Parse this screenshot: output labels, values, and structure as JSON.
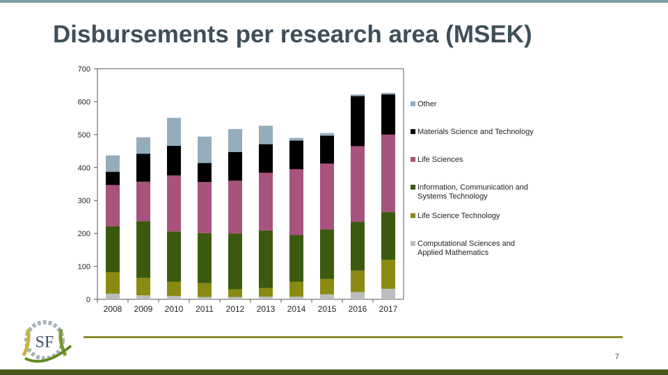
{
  "slide": {
    "title": "Disbursements per research area (MSEK)",
    "page_number": "7",
    "logo_text": "SF"
  },
  "colors": {
    "Other": "#94adbd",
    "Materials Science and Technology": "#000000",
    "Life Sciences": "#a8527e",
    "Information, Communication and Systems Technology": "#3c5a0f",
    "Life Science Technology": "#8a8a12",
    "Computational Sciences and Applied Mathematics": "#bdbdbd"
  },
  "chart_data": {
    "type": "bar",
    "stacked": true,
    "title": "Disbursements per research area (MSEK)",
    "xlabel": "",
    "ylabel": "",
    "ylim": [
      0,
      700
    ],
    "yticks": [
      "0",
      "100",
      "200",
      "300",
      "400",
      "500",
      "600",
      "700"
    ],
    "categories": [
      "2008",
      "2009",
      "2010",
      "2011",
      "2012",
      "2013",
      "2014",
      "2015",
      "2016",
      "2017"
    ],
    "series": [
      {
        "name": "Computational Sciences and Applied Mathematics",
        "values": [
          17,
          12,
          10,
          7,
          7,
          8,
          8,
          15,
          22,
          32
        ]
      },
      {
        "name": "Life Science Technology",
        "values": [
          65,
          53,
          43,
          42,
          23,
          26,
          45,
          47,
          65,
          88
        ]
      },
      {
        "name": "Information, Communication and Systems Technology",
        "values": [
          140,
          172,
          153,
          152,
          170,
          175,
          142,
          150,
          148,
          145
        ]
      },
      {
        "name": "Life Sciences",
        "values": [
          125,
          120,
          170,
          155,
          160,
          175,
          200,
          200,
          230,
          235
        ]
      },
      {
        "name": "Materials Science and Technology",
        "values": [
          40,
          85,
          90,
          58,
          87,
          87,
          87,
          85,
          152,
          122
        ]
      },
      {
        "name": "Other",
        "values": [
          50,
          50,
          85,
          80,
          70,
          56,
          8,
          8,
          5,
          5
        ]
      }
    ],
    "legend": [
      "Other",
      "Materials Science and Technology",
      "Life Sciences",
      "Information, Communication and Systems Technology",
      "Life Science Technology",
      "Computational Sciences and Applied Mathematics"
    ],
    "legend_position": "right"
  }
}
